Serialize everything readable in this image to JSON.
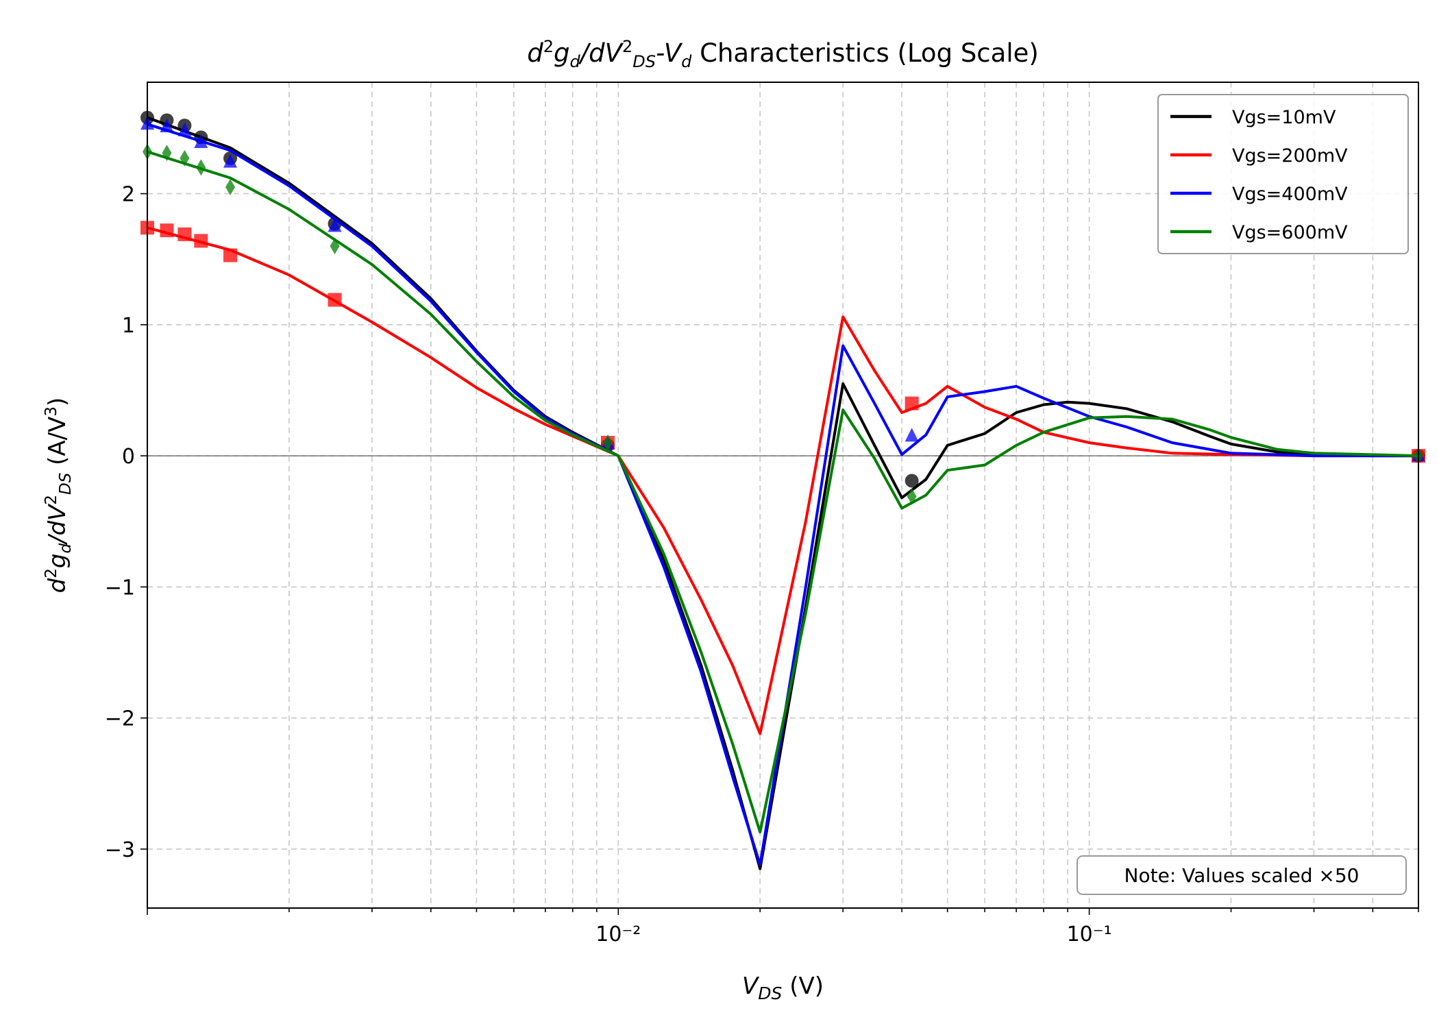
{
  "chart_data": {
    "type": "line",
    "title": "d²g_d/dV²_DS-V_d Characteristics (Log Scale)",
    "xlabel": "V_DS (V)",
    "ylabel": "d²g_d/dV²_DS (A/V³)",
    "xscale": "log",
    "xlim": [
      0.001,
      0.5
    ],
    "ylim": [
      -3.45,
      2.85
    ],
    "x_ticks": [
      {
        "value": 0.01,
        "label": "10⁻²"
      },
      {
        "value": 0.1,
        "label": "10⁻¹"
      }
    ],
    "y_ticks": [
      {
        "value": -3,
        "label": "−3"
      },
      {
        "value": -2,
        "label": "−2"
      },
      {
        "value": -1,
        "label": "−1"
      },
      {
        "value": 0,
        "label": "0"
      },
      {
        "value": 1,
        "label": "1"
      },
      {
        "value": 2,
        "label": "2"
      }
    ],
    "grid": true,
    "legend_position": "top-right",
    "annotation": "Note: Values scaled ×50",
    "series": [
      {
        "name": "Vgs=10mV",
        "color": "#000000",
        "marker": "circle",
        "points": [
          [
            0.001,
            2.58
          ],
          [
            0.0015,
            2.35
          ],
          [
            0.002,
            2.08
          ],
          [
            0.003,
            1.62
          ],
          [
            0.004,
            1.2
          ],
          [
            0.005,
            0.8
          ],
          [
            0.006,
            0.5
          ],
          [
            0.007,
            0.3
          ],
          [
            0.008,
            0.18
          ],
          [
            0.01,
            0.0
          ],
          [
            0.0125,
            -0.8
          ],
          [
            0.015,
            -1.6
          ],
          [
            0.0175,
            -2.4
          ],
          [
            0.02,
            -3.15
          ],
          [
            0.025,
            -1.15
          ],
          [
            0.03,
            0.55
          ],
          [
            0.035,
            0.08
          ],
          [
            0.04,
            -0.32
          ],
          [
            0.045,
            -0.18
          ],
          [
            0.05,
            0.08
          ],
          [
            0.06,
            0.17
          ],
          [
            0.07,
            0.33
          ],
          [
            0.08,
            0.39
          ],
          [
            0.09,
            0.41
          ],
          [
            0.1,
            0.4
          ],
          [
            0.12,
            0.36
          ],
          [
            0.15,
            0.26
          ],
          [
            0.18,
            0.15
          ],
          [
            0.2,
            0.09
          ],
          [
            0.25,
            0.03
          ],
          [
            0.3,
            0.01
          ],
          [
            0.4,
            0.0
          ],
          [
            0.5,
            0.0
          ]
        ],
        "marker_points": [
          [
            0.001,
            2.58
          ],
          [
            0.0011,
            2.56
          ],
          [
            0.0012,
            2.52
          ],
          [
            0.0013,
            2.43
          ],
          [
            0.0015,
            2.27
          ],
          [
            0.0025,
            1.77
          ],
          [
            0.0095,
            0.08
          ],
          [
            0.042,
            -0.19
          ],
          [
            0.5,
            0.0
          ]
        ]
      },
      {
        "name": "Vgs=200mV",
        "color": "#ff0000",
        "marker": "square",
        "points": [
          [
            0.001,
            1.74
          ],
          [
            0.0015,
            1.57
          ],
          [
            0.002,
            1.38
          ],
          [
            0.003,
            1.02
          ],
          [
            0.004,
            0.75
          ],
          [
            0.005,
            0.52
          ],
          [
            0.006,
            0.36
          ],
          [
            0.007,
            0.24
          ],
          [
            0.008,
            0.15
          ],
          [
            0.01,
            0.0
          ],
          [
            0.0125,
            -0.55
          ],
          [
            0.015,
            -1.1
          ],
          [
            0.0175,
            -1.6
          ],
          [
            0.02,
            -2.12
          ],
          [
            0.025,
            -0.5
          ],
          [
            0.03,
            1.06
          ],
          [
            0.035,
            0.65
          ],
          [
            0.04,
            0.33
          ],
          [
            0.045,
            0.4
          ],
          [
            0.05,
            0.53
          ],
          [
            0.06,
            0.37
          ],
          [
            0.07,
            0.28
          ],
          [
            0.08,
            0.18
          ],
          [
            0.1,
            0.1
          ],
          [
            0.12,
            0.06
          ],
          [
            0.15,
            0.02
          ],
          [
            0.2,
            0.01
          ],
          [
            0.3,
            0.0
          ],
          [
            0.5,
            0.0
          ]
        ],
        "marker_points": [
          [
            0.001,
            1.74
          ],
          [
            0.0011,
            1.72
          ],
          [
            0.0012,
            1.69
          ],
          [
            0.0013,
            1.64
          ],
          [
            0.0015,
            1.53
          ],
          [
            0.0025,
            1.19
          ],
          [
            0.0095,
            0.1
          ],
          [
            0.042,
            0.4
          ],
          [
            0.5,
            0.0
          ]
        ]
      },
      {
        "name": "Vgs=400mV",
        "color": "#0000ff",
        "marker": "triangle",
        "points": [
          [
            0.001,
            2.53
          ],
          [
            0.0015,
            2.33
          ],
          [
            0.002,
            2.06
          ],
          [
            0.003,
            1.6
          ],
          [
            0.004,
            1.18
          ],
          [
            0.005,
            0.79
          ],
          [
            0.006,
            0.49
          ],
          [
            0.007,
            0.29
          ],
          [
            0.008,
            0.17
          ],
          [
            0.01,
            0.0
          ],
          [
            0.0125,
            -0.85
          ],
          [
            0.015,
            -1.65
          ],
          [
            0.0175,
            -2.45
          ],
          [
            0.02,
            -3.12
          ],
          [
            0.025,
            -1.0
          ],
          [
            0.03,
            0.84
          ],
          [
            0.035,
            0.4
          ],
          [
            0.04,
            0.01
          ],
          [
            0.045,
            0.16
          ],
          [
            0.05,
            0.45
          ],
          [
            0.06,
            0.49
          ],
          [
            0.07,
            0.53
          ],
          [
            0.08,
            0.44
          ],
          [
            0.1,
            0.3
          ],
          [
            0.12,
            0.22
          ],
          [
            0.15,
            0.1
          ],
          [
            0.2,
            0.02
          ],
          [
            0.3,
            0.0
          ],
          [
            0.5,
            0.0
          ]
        ],
        "marker_points": [
          [
            0.001,
            2.53
          ],
          [
            0.0011,
            2.51
          ],
          [
            0.0012,
            2.48
          ],
          [
            0.0013,
            2.39
          ],
          [
            0.0015,
            2.24
          ],
          [
            0.0025,
            1.75
          ],
          [
            0.0095,
            0.09
          ],
          [
            0.042,
            0.15
          ],
          [
            0.5,
            0.0
          ]
        ]
      },
      {
        "name": "Vgs=600mV",
        "color": "#008000",
        "marker": "diamond",
        "points": [
          [
            0.001,
            2.32
          ],
          [
            0.0015,
            2.12
          ],
          [
            0.002,
            1.88
          ],
          [
            0.003,
            1.46
          ],
          [
            0.004,
            1.08
          ],
          [
            0.005,
            0.72
          ],
          [
            0.006,
            0.45
          ],
          [
            0.007,
            0.27
          ],
          [
            0.008,
            0.16
          ],
          [
            0.01,
            0.0
          ],
          [
            0.0125,
            -0.75
          ],
          [
            0.015,
            -1.5
          ],
          [
            0.0175,
            -2.2
          ],
          [
            0.02,
            -2.87
          ],
          [
            0.025,
            -1.2
          ],
          [
            0.03,
            0.35
          ],
          [
            0.035,
            -0.02
          ],
          [
            0.04,
            -0.4
          ],
          [
            0.045,
            -0.3
          ],
          [
            0.05,
            -0.11
          ],
          [
            0.06,
            -0.07
          ],
          [
            0.07,
            0.08
          ],
          [
            0.08,
            0.18
          ],
          [
            0.1,
            0.29
          ],
          [
            0.12,
            0.3
          ],
          [
            0.15,
            0.28
          ],
          [
            0.18,
            0.2
          ],
          [
            0.2,
            0.14
          ],
          [
            0.25,
            0.05
          ],
          [
            0.3,
            0.02
          ],
          [
            0.5,
            0.0
          ]
        ],
        "marker_points": [
          [
            0.001,
            2.32
          ],
          [
            0.0011,
            2.31
          ],
          [
            0.0012,
            2.27
          ],
          [
            0.0013,
            2.2
          ],
          [
            0.0015,
            2.05
          ],
          [
            0.0025,
            1.6
          ],
          [
            0.0095,
            0.1
          ],
          [
            0.042,
            -0.31
          ],
          [
            0.5,
            0.0
          ]
        ]
      }
    ]
  }
}
